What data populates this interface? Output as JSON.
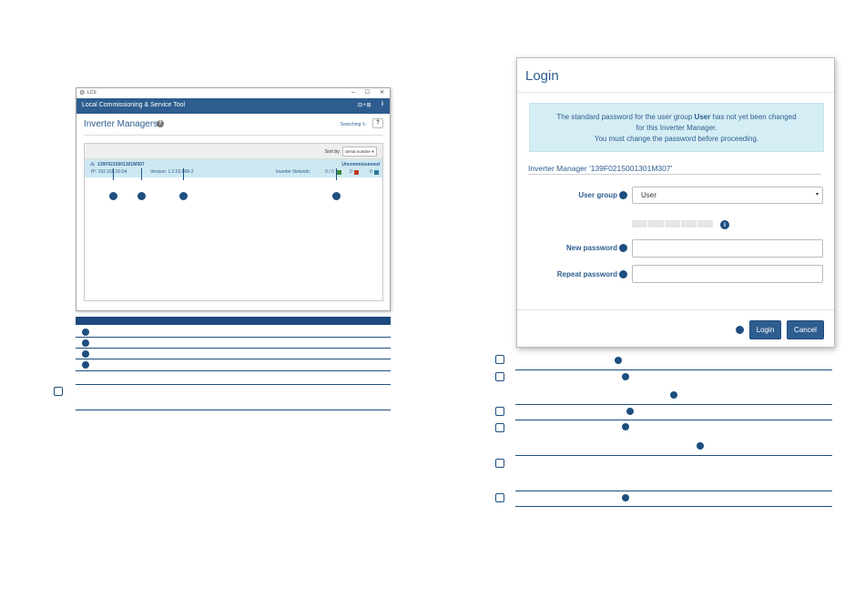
{
  "lcs_window": {
    "title": "LCS",
    "minimize": "–",
    "maximize": "☐",
    "close": "✕",
    "app_title": "Local Commissioning & Service Tool",
    "language_icon": "language-icon",
    "info": "i",
    "section_title": "Inverter Managers",
    "help": "?",
    "searching": "Searching",
    "searching_icon": "refresh-icon",
    "question_button": "?",
    "sort_label": "Sort by:",
    "sort_value": "Serial number",
    "device": {
      "serial": "139F0215001301M307",
      "status": "Uncommissioned",
      "ip": "IP: 192.168.50.54",
      "version": "Version: 1.2.03.008-2",
      "network_label": "Inverter Network:",
      "count_green": "0 / 0",
      "count_red": "0",
      "count_blue": "0",
      "green": "#3a8b3a",
      "red": "#c0392b",
      "blue": "#2a7a9a"
    }
  },
  "login": {
    "title": "Login",
    "alert": {
      "pre": "The standard password for the user group ",
      "bold": "User",
      "post": " has not yet been changed",
      "line2": "for this Inverter Manager.",
      "line3": "You must change the password before proceeding."
    },
    "inverter_manager": "Inverter Manager '139F0215001301M307'",
    "user_group_label": "User group",
    "user_group_value": "User",
    "new_password_label": "New password",
    "repeat_password_label": "Repeat password",
    "info_icon": "i",
    "login_button": "Login",
    "cancel_button": "Cancel"
  },
  "colors": {
    "primary": "#2e5d8f",
    "marker": "#1d4e7f",
    "alert_bg": "#d5edf4"
  }
}
